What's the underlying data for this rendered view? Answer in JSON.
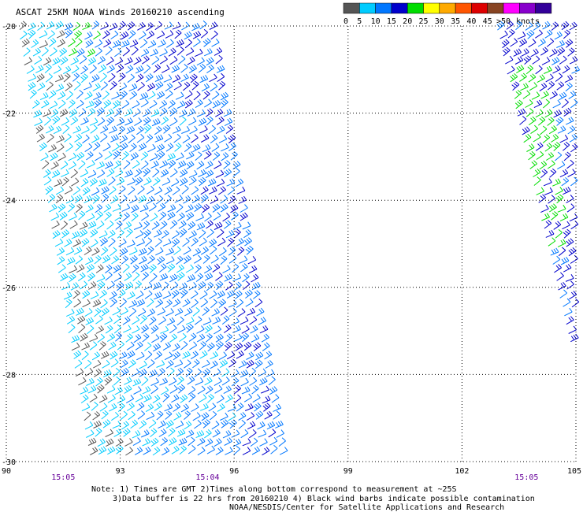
{
  "header": {
    "title": "ASCAT 25KM NOAA Winds 20160210 ascending"
  },
  "legend": {
    "unit_label": "knots",
    "bins": [
      {
        "label": "0",
        "color": "#555555"
      },
      {
        "label": "5",
        "color": "#00ccff"
      },
      {
        "label": "10",
        "color": "#0077ff"
      },
      {
        "label": "15",
        "color": "#0000cc"
      },
      {
        "label": "20",
        "color": "#00dd00"
      },
      {
        "label": "25",
        "color": "#ffff00"
      },
      {
        "label": "30",
        "color": "#ffaa00"
      },
      {
        "label": "35",
        "color": "#ff5500"
      },
      {
        "label": "40",
        "color": "#dd0000"
      },
      {
        "label": "45",
        "color": "#884422"
      },
      {
        "label": ">50",
        "color": "#ff00ff"
      },
      {
        "label": "",
        "color": "#8800cc"
      },
      {
        "label": "",
        "color": "#330099"
      }
    ]
  },
  "map": {
    "lon_range": [
      90,
      105
    ],
    "lat_range": [
      -30,
      -20
    ],
    "lon_ticks": [
      "90",
      "93",
      "96",
      "99",
      "102",
      "105"
    ],
    "lat_ticks": [
      "-20",
      "-22",
      "-24",
      "-26",
      "-28",
      "-30"
    ],
    "grid": true,
    "time_labels": [
      {
        "text": "15:05",
        "lon": 91.5
      },
      {
        "text": "15:04",
        "lon": 95.3
      },
      {
        "text": "15:05",
        "lon": 103.7
      }
    ],
    "time_label_color": "#660099"
  },
  "swaths": [
    {
      "name": "west",
      "corners_lon_lat": [
        [
          90.3,
          -20
        ],
        [
          95.5,
          -20
        ],
        [
          97.6,
          -30
        ],
        [
          92.2,
          -30
        ]
      ]
    },
    {
      "name": "east",
      "corners_lon_lat": [
        [
          102.9,
          -20
        ],
        [
          105,
          -20
        ],
        [
          105,
          -28.5
        ],
        [
          105,
          -28.5
        ]
      ]
    }
  ],
  "footer": {
    "note_line1": "Note: 1) Times are GMT 2)Times along bottom correspond to measurement at ~25S",
    "note_line2": "3)Data buffer is 22 hrs from 20160210 4) Black wind barbs indicate possible contamination",
    "credit": "NOAA/NESDIS/Center for Satellite Applications and Research"
  }
}
